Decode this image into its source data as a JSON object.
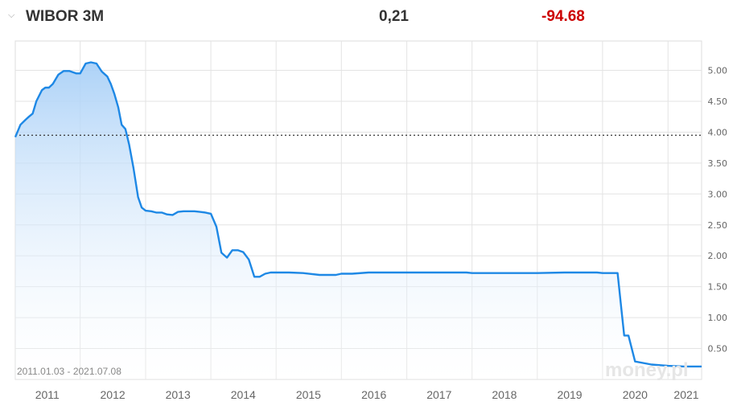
{
  "header": {
    "chevron_icon": "chevron-down-icon",
    "title": "WIBOR 3M",
    "value": "0,21",
    "change": "-94.68",
    "change_color": "#cc0000"
  },
  "chart": {
    "date_range": "2011.01.03 - 2021.07.08",
    "watermark": "money.pl",
    "line_color": "#1e88e5"
  },
  "chart_data": {
    "type": "area",
    "title": "WIBOR 3M",
    "xlabel": "",
    "ylabel": "",
    "xlim": [
      "2011-01-03",
      "2021-07-08"
    ],
    "ylim": [
      0,
      5.5
    ],
    "x_ticks": [
      "2011",
      "2012",
      "2013",
      "2014",
      "2015",
      "2016",
      "2017",
      "2018",
      "2019",
      "2020",
      "2021"
    ],
    "y_ticks": [
      "0.50",
      "1.00",
      "1.50",
      "2.00",
      "2.50",
      "3.00",
      "3.50",
      "4.00",
      "4.50",
      "5.00"
    ],
    "grid": true,
    "reference_line": 3.95,
    "series": [
      {
        "x": [
          "2011-01-03",
          "2011-02-01",
          "2011-03-01",
          "2011-03-20",
          "2011-04-10",
          "2011-05-01",
          "2011-06-01",
          "2011-06-20",
          "2011-07-10",
          "2011-08-01",
          "2011-09-01",
          "2011-10-01",
          "2011-11-01",
          "2011-11-20",
          "2011-12-10",
          "2012-01-01",
          "2012-02-01",
          "2012-03-01",
          "2012-04-01",
          "2012-05-01",
          "2012-06-01",
          "2012-06-20",
          "2012-07-10",
          "2012-08-01",
          "2012-08-20",
          "2012-09-10",
          "2012-10-01",
          "2012-10-25",
          "2012-11-20",
          "2012-12-10",
          "2013-01-01",
          "2013-02-01",
          "2013-03-01",
          "2013-04-01",
          "2013-05-01",
          "2013-06-01",
          "2013-07-01",
          "2013-08-01",
          "2013-09-01",
          "2013-10-01",
          "2013-11-01",
          "2013-12-01",
          "2014-01-01",
          "2014-02-01",
          "2014-03-01",
          "2014-04-01",
          "2014-05-01",
          "2014-06-01",
          "2014-07-01",
          "2014-08-01",
          "2014-09-01",
          "2014-10-01",
          "2014-11-01",
          "2014-12-01",
          "2015-01-01",
          "2015-02-01",
          "2015-03-15",
          "2015-06-01",
          "2015-09-01",
          "2015-12-01",
          "2016-01-01",
          "2016-03-01",
          "2016-06-01",
          "2016-09-01",
          "2016-12-01",
          "2017-01-01",
          "2017-06-01",
          "2017-12-01",
          "2018-01-01",
          "2018-06-01",
          "2018-12-01",
          "2019-01-01",
          "2019-06-01",
          "2019-10-01",
          "2019-12-01",
          "2020-01-01",
          "2020-02-20",
          "2020-03-10",
          "2020-03-25",
          "2020-04-15",
          "2020-05-01",
          "2020-05-25",
          "2020-07-01",
          "2020-10-01",
          "2021-01-01",
          "2021-04-01",
          "2021-07-08"
        ],
        "values": [
          3.92,
          4.12,
          4.2,
          4.25,
          4.3,
          4.5,
          4.68,
          4.72,
          4.72,
          4.78,
          4.93,
          4.99,
          4.99,
          4.97,
          4.95,
          4.95,
          5.11,
          5.13,
          5.11,
          4.98,
          4.9,
          4.78,
          4.62,
          4.4,
          4.12,
          4.05,
          3.8,
          3.42,
          2.95,
          2.78,
          2.73,
          2.72,
          2.7,
          2.7,
          2.67,
          2.66,
          2.71,
          2.72,
          2.72,
          2.72,
          2.71,
          2.7,
          2.68,
          2.47,
          2.05,
          1.97,
          2.09,
          2.09,
          2.06,
          1.94,
          1.66,
          1.66,
          1.71,
          1.73,
          1.73,
          1.73,
          1.73,
          1.72,
          1.69,
          1.69,
          1.71,
          1.71,
          1.73,
          1.73,
          1.73,
          1.73,
          1.73,
          1.73,
          1.72,
          1.72,
          1.72,
          1.72,
          1.73,
          1.73,
          1.73,
          1.72,
          1.72,
          1.72,
          1.72,
          1.15,
          0.71,
          0.71,
          0.29,
          0.24,
          0.22,
          0.21,
          0.21
        ]
      }
    ]
  }
}
